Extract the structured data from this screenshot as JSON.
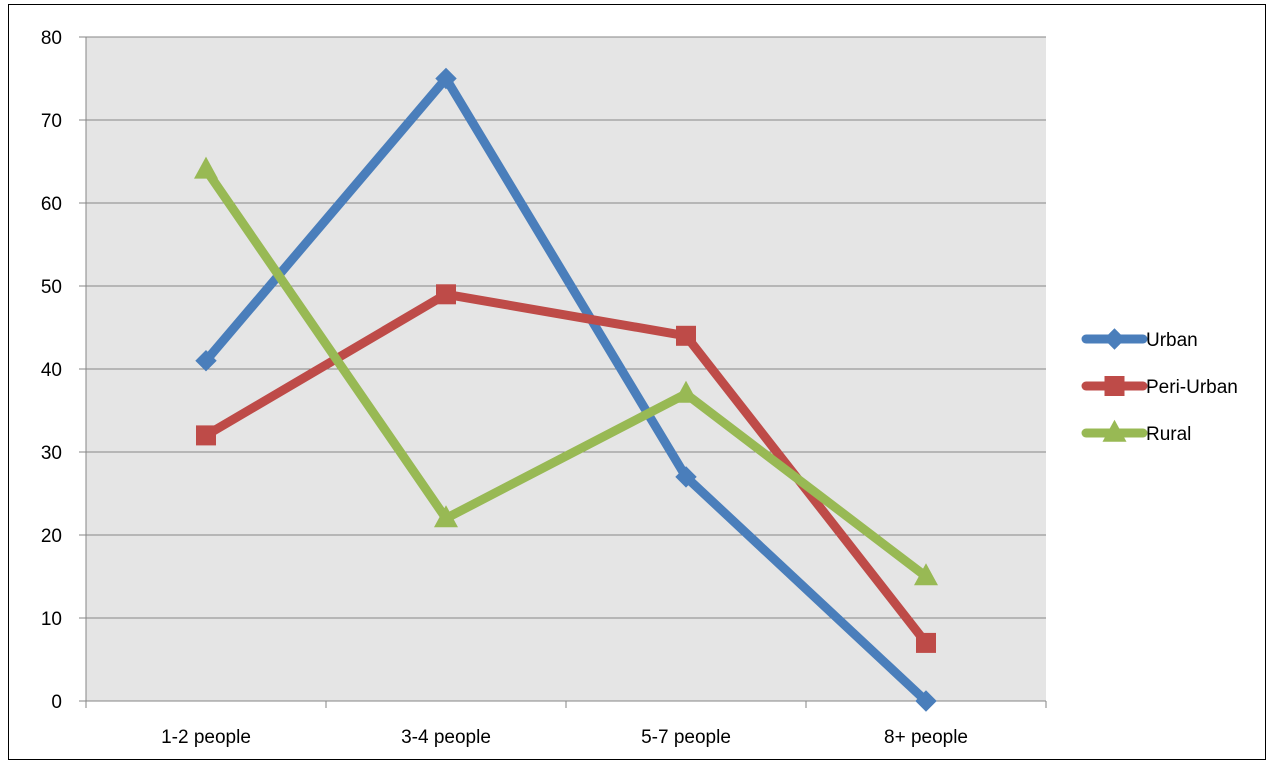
{
  "chart_data": {
    "type": "line",
    "title": "",
    "xlabel": "",
    "ylabel": "",
    "categories": [
      "1-2 people",
      "3-4 people",
      "5-7 people",
      "8+ people"
    ],
    "ylim": [
      0,
      80
    ],
    "yticks": [
      0,
      10,
      20,
      30,
      40,
      50,
      60,
      70,
      80
    ],
    "grid": true,
    "legend_position": "right",
    "series": [
      {
        "name": "Urban",
        "values": [
          41,
          75,
          27,
          0
        ],
        "color": "#4a7ebb",
        "marker": "diamond"
      },
      {
        "name": "Peri-Urban",
        "values": [
          32,
          49,
          44,
          7
        ],
        "color": "#be4b48",
        "marker": "square"
      },
      {
        "name": "Rural",
        "values": [
          64,
          22,
          37,
          15
        ],
        "color": "#98b954",
        "marker": "triangle"
      }
    ]
  }
}
